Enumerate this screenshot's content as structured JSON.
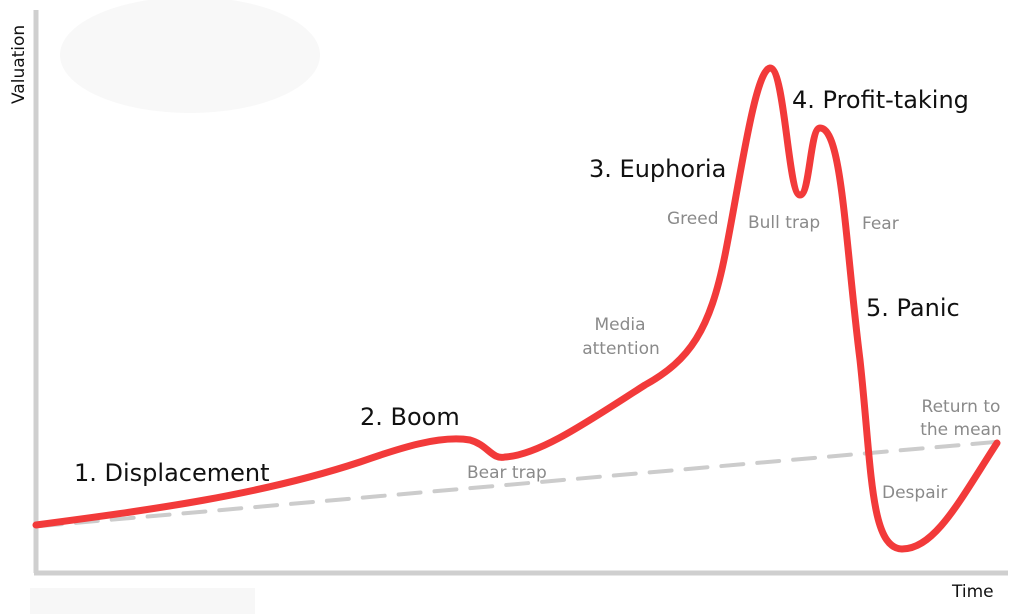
{
  "axes": {
    "x_label": "Time",
    "y_label": "Valuation"
  },
  "phases": {
    "displacement": "1. Displacement",
    "boom": "2. Boom",
    "euphoria": "3. Euphoria",
    "profit_taking": "4. Profit-taking",
    "panic": "5. Panic"
  },
  "annotations": {
    "bear_trap": "Bear trap",
    "media_attention_line1": "Media",
    "media_attention_line2": "attention",
    "greed": "Greed",
    "bull_trap": "Bull trap",
    "fear": "Fear",
    "return_line1": "Return to",
    "return_line2": "the mean",
    "despair": "Despair"
  },
  "colors": {
    "curve": "#f23a3a",
    "mean_line": "#cccccc",
    "axis": "#cfcfcf",
    "phase_text": "#111111",
    "note_text": "#8a8a8a"
  }
}
